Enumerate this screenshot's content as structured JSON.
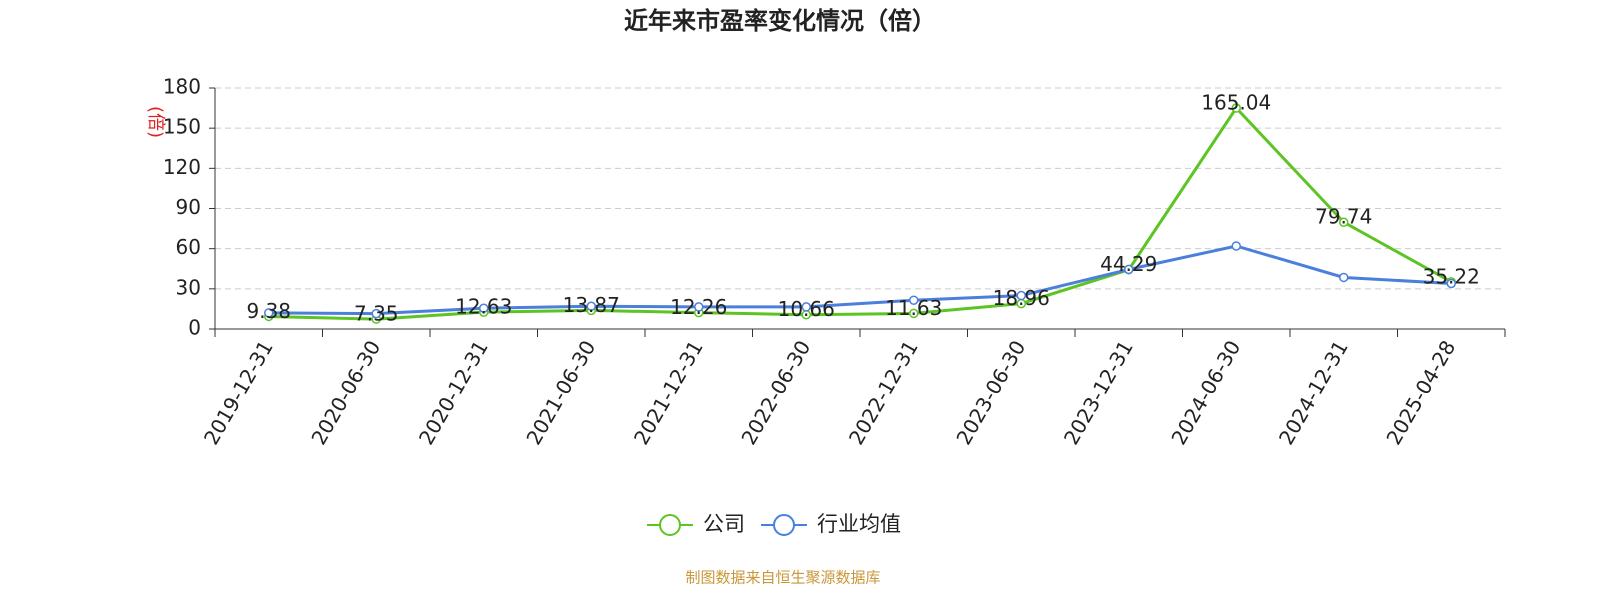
{
  "chart_data": {
    "type": "line",
    "title": "近年来市盈率变化情况（倍）",
    "y_label": "(倍)",
    "source": "制图数据来自恒生聚源数据库",
    "categories": [
      "2019-12-31",
      "2020-06-30",
      "2020-12-31",
      "2021-06-30",
      "2021-12-31",
      "2022-06-30",
      "2022-12-31",
      "2023-06-30",
      "2023-12-31",
      "2024-06-30",
      "2024-12-31",
      "2025-04-28"
    ],
    "series": [
      {
        "name": "公司",
        "color": "#5cc423",
        "show_labels": true,
        "values": [
          9.38,
          7.35,
          12.63,
          13.87,
          12.26,
          10.66,
          11.63,
          18.96,
          44.29,
          165.04,
          79.74,
          35.22
        ]
      },
      {
        "name": "行业均值",
        "color": "#4a7fdc",
        "show_labels": false,
        "values": [
          12,
          11.5,
          15.5,
          17,
          16.5,
          16.5,
          21.5,
          25,
          44.5,
          62,
          38.5,
          34
        ]
      }
    ],
    "ylim": [
      0,
      180
    ],
    "yticks": [
      0,
      30,
      60,
      90,
      120,
      150,
      180
    ],
    "grid": true,
    "legend": "bottom"
  }
}
